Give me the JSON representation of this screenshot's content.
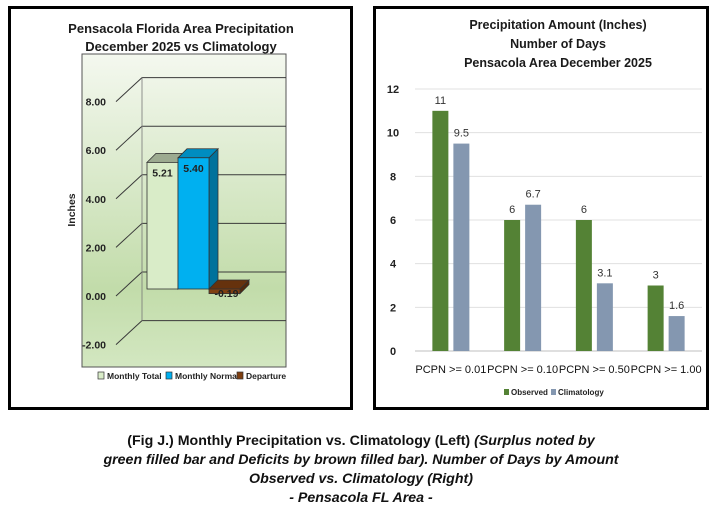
{
  "chart_data": [
    {
      "type": "bar",
      "style": "3d-column",
      "title": [
        "Pensacola Florida Area Precipitation",
        "December 2025 vs Climatology"
      ],
      "xlabel": "",
      "ylabel": "Inches",
      "ylim": [
        -2,
        8
      ],
      "yticks": [
        8,
        6,
        4,
        2,
        0,
        -2
      ],
      "ytick_labels": [
        "8.00",
        "6.00",
        "4.00",
        "2.00",
        "0.00",
        "-2.00"
      ],
      "grid": true,
      "legend_position": "bottom",
      "series": [
        {
          "name": "Monthly Total",
          "value": 5.21,
          "label": "5.21",
          "color": "#d9ecc8"
        },
        {
          "name": "Monthly Normal",
          "value": 5.4,
          "label": "5.40",
          "color": "#00b0f0"
        },
        {
          "name": "Departure",
          "value": -0.19,
          "label": "-0.19",
          "color": "#7f3f10"
        }
      ]
    },
    {
      "type": "bar",
      "title": [
        "Precipitation Amount (Inches)",
        "Number of Days",
        "Pensacola Area December 2025"
      ],
      "xlabel": "",
      "ylabel": "",
      "ylim": [
        0,
        12
      ],
      "yticks": [
        0,
        2,
        4,
        6,
        8,
        10,
        12
      ],
      "grid": true,
      "legend_position": "bottom",
      "categories": [
        "PCPN >= 0.01",
        "PCPN >= 0.10",
        "PCPN >= 0.50",
        "PCPN >= 1.00"
      ],
      "series": [
        {
          "name": "Observed",
          "values": [
            11,
            6,
            6,
            3
          ],
          "labels": [
            "11",
            "6",
            "6",
            "3"
          ],
          "color": "#548235"
        },
        {
          "name": "Climatology",
          "values": [
            9.5,
            6.7,
            3.1,
            1.6
          ],
          "labels": [
            "9.5",
            "6.7",
            "3.1",
            "1.6"
          ],
          "color": "#8497b0"
        }
      ]
    }
  ],
  "caption": {
    "line1_normal": "(Fig J.) Monthly Precipitation vs. Climatology (Left) ",
    "line1_italic": "(Surplus noted by",
    "line2_italic": "green filled bar and Deficits by brown filled bar). Number of Days by Amount",
    "line3_italic": "Observed vs. Climatology (Right)",
    "line4_italic": "- Pensacola FL Area -"
  }
}
